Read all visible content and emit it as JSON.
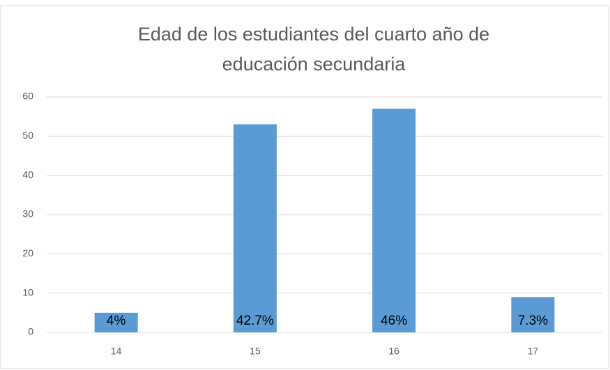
{
  "chart_data": {
    "type": "bar",
    "title": "Edad de los estudiantes del cuarto año de educación secundaria",
    "categories": [
      "14",
      "15",
      "16",
      "17"
    ],
    "values": [
      5,
      53,
      57,
      9
    ],
    "value_labels": [
      "4%",
      "42.7%",
      "46%",
      "7.3%"
    ],
    "color": "#5b9bd5",
    "ylim": [
      0,
      60
    ],
    "yticks": [
      0,
      10,
      20,
      30,
      40,
      50,
      60
    ],
    "grid": true
  }
}
